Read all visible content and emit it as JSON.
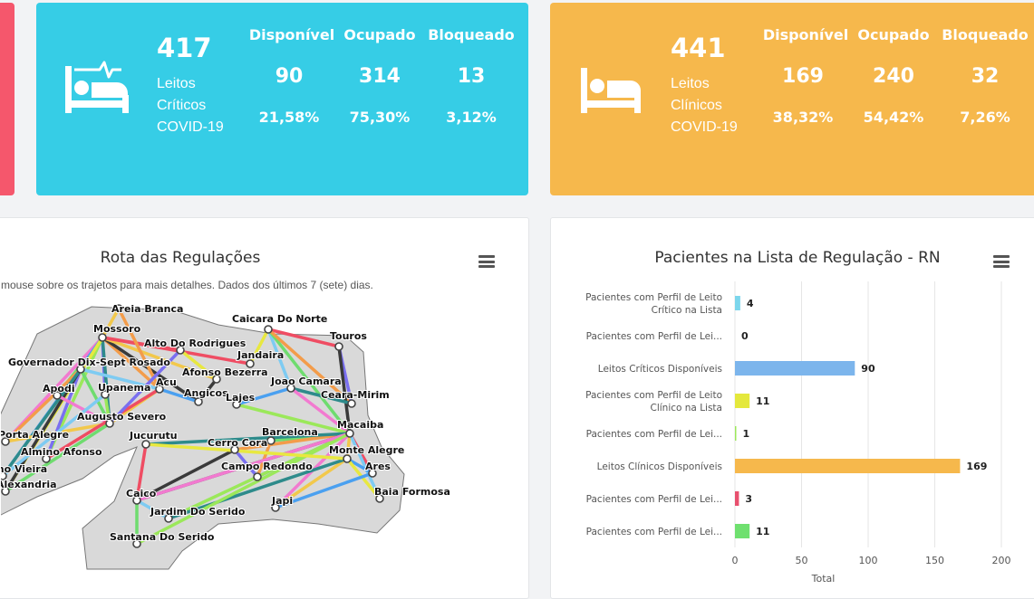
{
  "cards": [
    {
      "total": "417",
      "label_lines": [
        "Leitos",
        "Críticos",
        "COVID-19"
      ],
      "col_headers": [
        "Disponível",
        "Ocupado",
        "Bloqueado"
      ],
      "values": [
        "90",
        "314",
        "13"
      ],
      "percents": [
        "21,58%",
        "75,30%",
        "3,12%"
      ],
      "color": "#36cde6",
      "icon": "bed-heartbeat-icon"
    },
    {
      "total": "441",
      "label_lines": [
        "Leitos",
        "Clínicos",
        "COVID-19"
      ],
      "col_headers": [
        "Disponível",
        "Ocupado",
        "Bloqueado"
      ],
      "values": [
        "169",
        "240",
        "32"
      ],
      "percents": [
        "38,32%",
        "54,42%",
        "7,26%"
      ],
      "color": "#f6b84c",
      "icon": "bed-icon"
    }
  ],
  "left_card_color": "#f5576c",
  "map_panel": {
    "title": "Rota das Regulações",
    "subtitle": "mouse sobre os trajetos para mais detalhes. Dados dos últimos 7 (sete) dias.",
    "menu_icon": "hamburger-menu-icon",
    "cities": [
      "Areia Branca",
      "Mossoro",
      "Caicara Do Norte",
      "Touros",
      "Alto Do Rodrigues",
      "Jandaira",
      "Governador Dix-Sept Rosado",
      "Afonso Bezerra",
      "Apodi",
      "Acu",
      "Joao Camara",
      "Upanema",
      "Angicos",
      "Ceara-Mirim",
      "Lajes",
      "Augusto Severo",
      "Macaiba",
      "Porta Alegre",
      "Jucurutu",
      "Barcelona",
      "Cerro Cora",
      "Almino Afonso",
      "Monte Alegre",
      "ino Vieira",
      "Campo Redondo",
      "Ares",
      "Alexandria",
      "Baia Formosa",
      "Caico",
      "Japi",
      "Jardim Do Serido",
      "Santana Do Serido"
    ]
  },
  "chart_panel": {
    "title": "Pacientes na Lista de Regulação - RN",
    "menu_icon": "hamburger-menu-icon"
  },
  "chart_data": {
    "type": "bar",
    "orientation": "horizontal",
    "title": "Pacientes na Lista de Regulação - RN",
    "categories": [
      [
        "Pacientes com Perfil de Leito",
        "Crítico na Lista"
      ],
      [
        "Pacientes com Perfil de Lei..."
      ],
      [
        "Leitos Críticos Disponíveis"
      ],
      [
        "Pacientes com Perfil de Leito",
        "Clínico na Lista"
      ],
      [
        "Pacientes com Perfil de Lei..."
      ],
      [
        "Leitos Clínicos Disponíveis"
      ],
      [
        "Pacientes com Perfil de Lei..."
      ],
      [
        "Pacientes com Perfil de Lei..."
      ]
    ],
    "values": [
      4,
      0,
      90,
      11,
      1,
      169,
      3,
      11
    ],
    "colors": [
      "#7cd6ec",
      "#7cd6ec",
      "#7cb5ec",
      "#e4e83c",
      "#9be85a",
      "#f6b84c",
      "#e8506e",
      "#6fe06f"
    ],
    "xlim": [
      0,
      200
    ],
    "xticks": [
      0,
      50,
      100,
      150,
      200
    ],
    "xlabel": "Total",
    "grid": true
  }
}
